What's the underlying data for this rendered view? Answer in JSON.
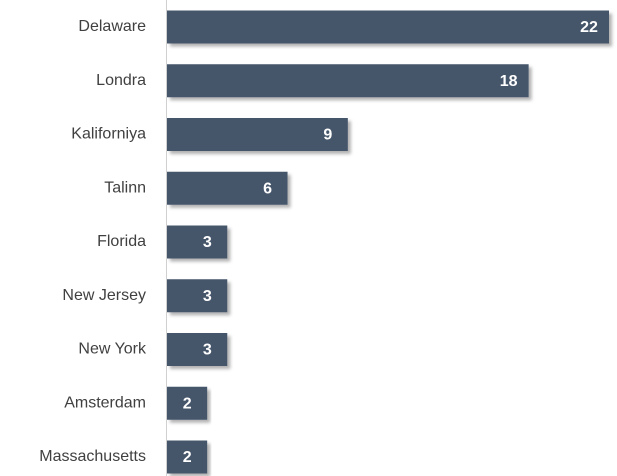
{
  "chart_data": {
    "type": "bar",
    "orientation": "horizontal",
    "color": "#44546a",
    "categories": [
      "Delaware",
      "Londra",
      "Kaliforniya",
      "Talinn",
      "Florida",
      "New Jersey",
      "New York",
      "Amsterdam",
      "Massachusetts"
    ],
    "values": [
      22,
      18,
      9,
      6,
      3,
      3,
      3,
      2,
      2
    ]
  }
}
